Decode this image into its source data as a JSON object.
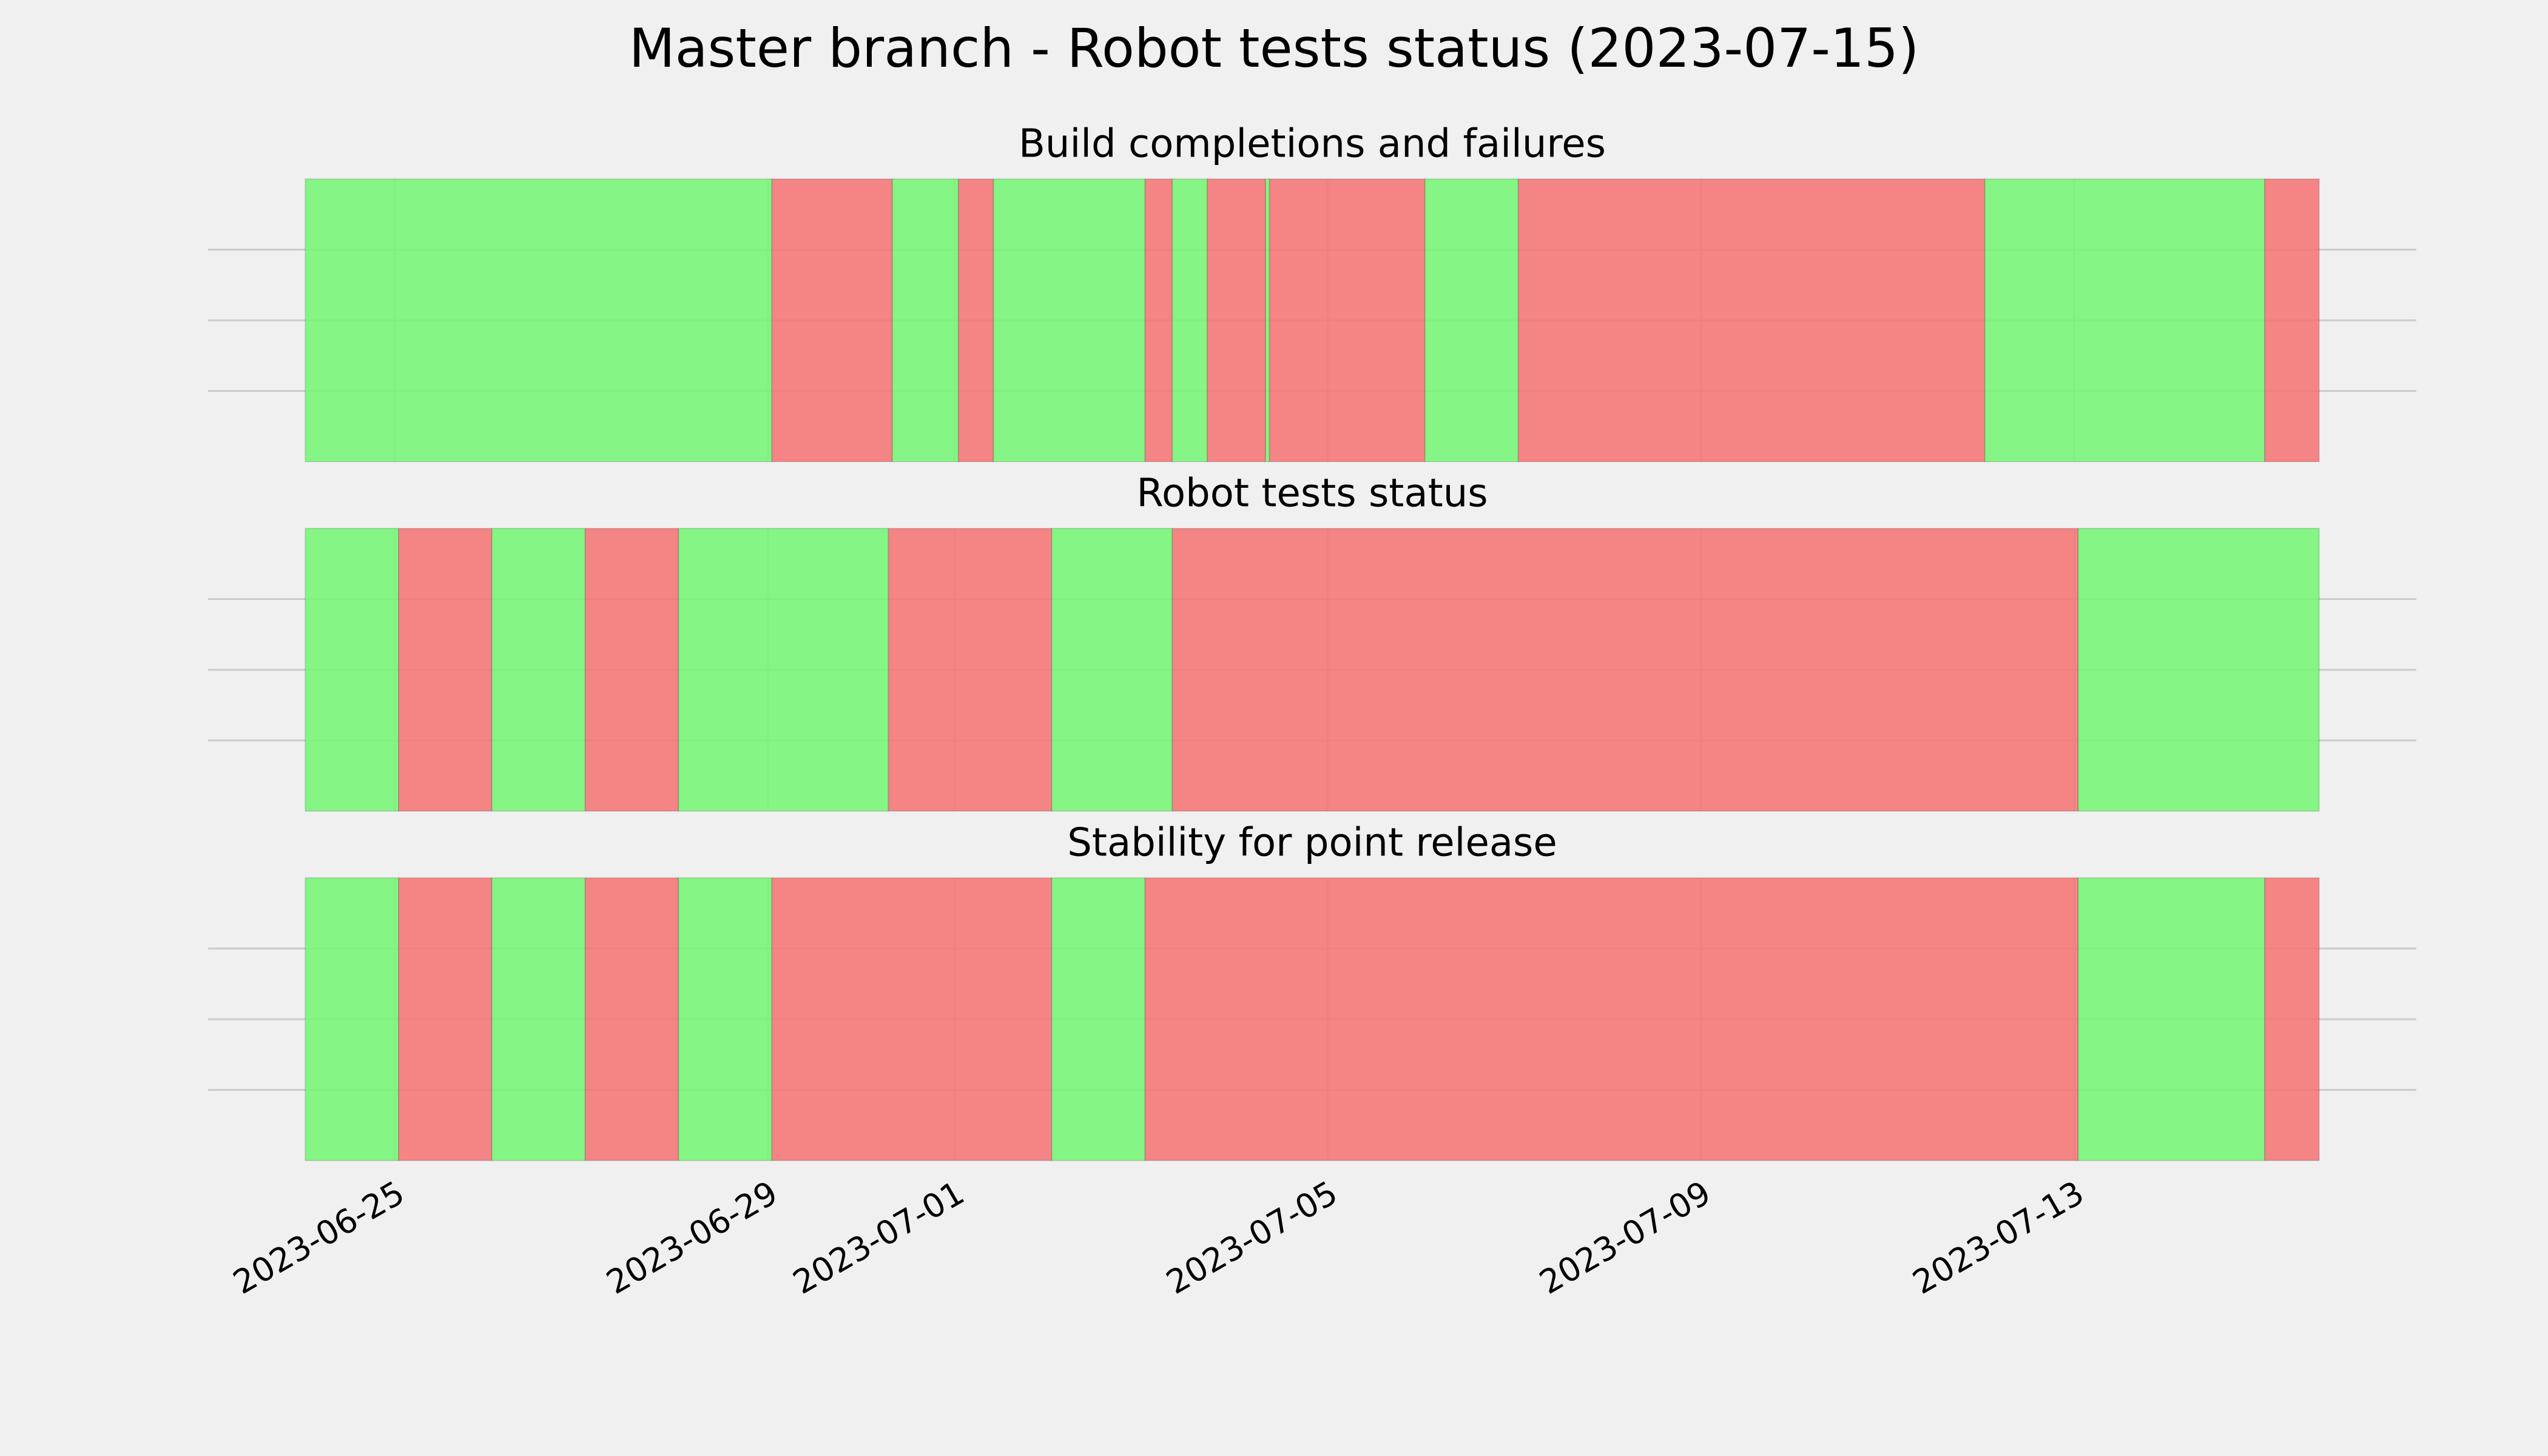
{
  "title": "Master branch - Robot tests status (2023-07-15)",
  "chart_data": [
    {
      "type": "timeline",
      "title": "Build completions and failures",
      "bins": [
        "2023-06-24T01:00",
        "2023-06-29T01:00",
        "2023-06-30T08:00",
        "2023-07-01T01:00",
        "2023-07-01T10:00",
        "2023-07-03T01:00",
        "2023-07-03T08:00",
        "2023-07-03T17:00",
        "2023-07-04T08:00",
        "2023-07-04T09:00",
        "2023-07-06T01:00",
        "2023-07-07T01:00",
        "2023-07-12T01:00",
        "2023-07-15T01:00",
        "2023-07-15T15:00"
      ],
      "colors": [
        "#75f575",
        "#f57575",
        "#75f575",
        "#f57575",
        "#75f575",
        "#f57575",
        "#75f575",
        "#f57575",
        "#75f575",
        "#f57575",
        "#75f575",
        "#f57575",
        "#75f575",
        "#f57575"
      ],
      "xlim": [
        "2023-06-23T00:00",
        "2023-07-16T16:00"
      ],
      "ylim": [
        0,
        1
      ],
      "yticks": [
        0.25,
        0.5,
        0.75
      ],
      "grid": true
    },
    {
      "type": "timeline",
      "title": "Robot tests status",
      "bins": [
        "2023-06-24T01:00",
        "2023-06-25T01:00",
        "2023-06-26T01:00",
        "2023-06-27T01:00",
        "2023-06-28T01:00",
        "2023-06-30T07:00",
        "2023-07-02T01:00",
        "2023-07-03T08:00",
        "2023-07-13T01:00",
        "2023-07-15T15:00"
      ],
      "colors": [
        "#75f575",
        "#f57575",
        "#75f575",
        "#f57575",
        "#75f575",
        "#f57575",
        "#75f575",
        "#f57575",
        "#75f575"
      ],
      "xlim": [
        "2023-06-23T00:00",
        "2023-07-16T16:00"
      ],
      "ylim": [
        0,
        1
      ],
      "yticks": [
        0.25,
        0.5,
        0.75
      ],
      "grid": true
    },
    {
      "type": "timeline",
      "title": "Stability for point release",
      "bins": [
        "2023-06-24T01:00",
        "2023-06-25T01:00",
        "2023-06-26T01:00",
        "2023-06-27T01:00",
        "2023-06-28T01:00",
        "2023-06-29T01:00",
        "2023-07-02T01:00",
        "2023-07-03T01:00",
        "2023-07-13T01:00",
        "2023-07-15T01:00",
        "2023-07-15T15:00"
      ],
      "colors": [
        "#75f575",
        "#f57575",
        "#75f575",
        "#f57575",
        "#75f575",
        "#f57575",
        "#75f575",
        "#f57575",
        "#75f575",
        "#f57575"
      ],
      "xlim": [
        "2023-06-23T00:00",
        "2023-07-16T16:00"
      ],
      "ylim": [
        0,
        1
      ],
      "yticks": [
        0.25,
        0.5,
        0.75
      ],
      "grid": true,
      "xticks": [
        "2023-06-25",
        "2023-06-29",
        "2023-07-01",
        "2023-07-05",
        "2023-07-09",
        "2023-07-13"
      ]
    }
  ]
}
